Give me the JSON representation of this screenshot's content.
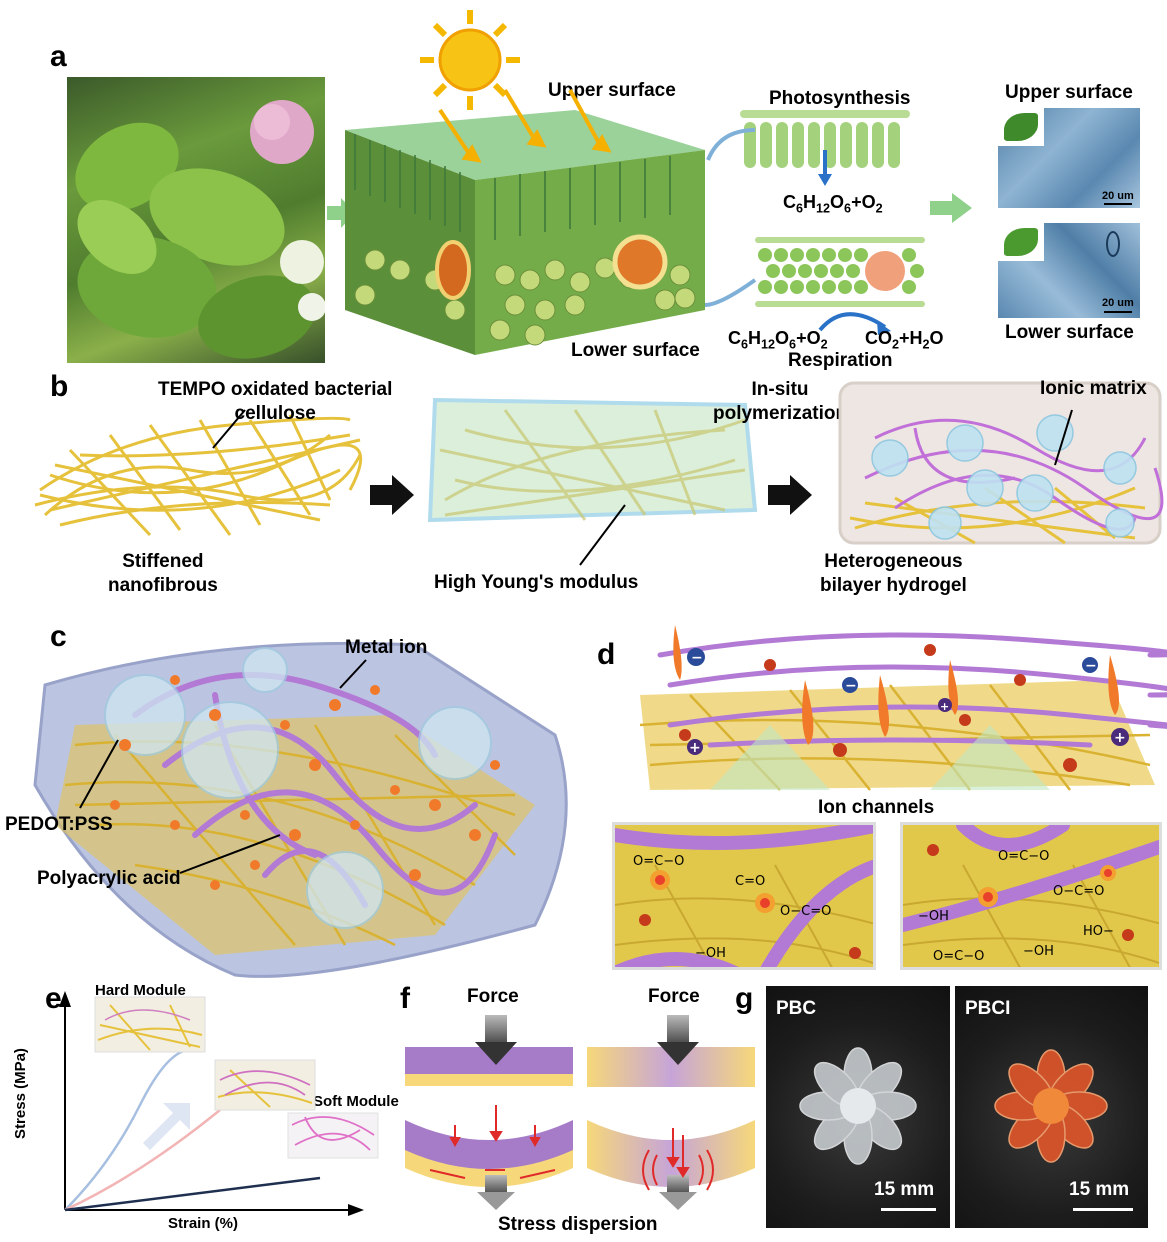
{
  "panels": {
    "a": {
      "label": "a",
      "upper_surface": "Upper surface",
      "lower_surface": "Lower surface",
      "photosynthesis": "Photosynthesis",
      "respiration": "Respiration",
      "product_1": "C6H12O6+O2",
      "reactant_2": "C6H12O6+O2",
      "product_2": "CO2+H2O",
      "sem_upper_title": "Upper surface",
      "sem_lower_title": "Lower surface",
      "scale_bar_1": "20 um",
      "scale_bar_2": "20 um"
    },
    "b": {
      "label": "b",
      "tempo": "TEMPO oxidated bacterial\ncellulose",
      "stiffened": "Stiffened\nnanofibrous",
      "insitu": "In-situ\npolymerization",
      "young": "High Young's modulus",
      "ionic_matrix": "Ionic matrix",
      "hetero": "Heterogeneous\nbilayer hydrogel"
    },
    "c": {
      "label": "c",
      "metal_ion": "Metal ion",
      "pedot": "PEDOT:PSS",
      "paa": "Polyacrylic acid"
    },
    "d": {
      "label": "d",
      "ion_channels": "Ion channels"
    },
    "e": {
      "label": "e",
      "hard": "Hard Module",
      "soft": "Soft Module",
      "ylabel": "Stress (MPa)",
      "xlabel": "Strain (%)"
    },
    "f": {
      "label": "f",
      "force_1": "Force",
      "force_2": "Force",
      "stress": "Stress dispersion"
    },
    "g": {
      "label": "g",
      "pbc": "PBC",
      "pbci": "PBCI",
      "scale_1": "15 mm",
      "scale_2": "15 mm"
    }
  },
  "colors": {
    "leaf_green": "#6aa84f",
    "fiber_yellow": "#e8c440",
    "polymer_purple": "#b07ad0",
    "ion_orange": "#e8602a"
  }
}
